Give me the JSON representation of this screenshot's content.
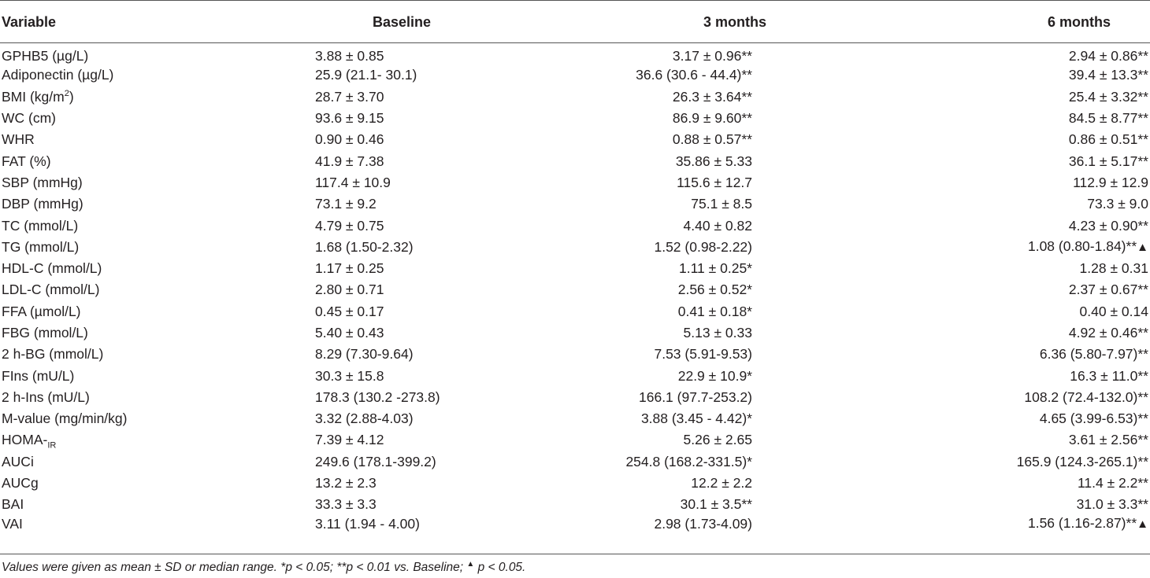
{
  "table": {
    "headers": {
      "variable": "Variable",
      "baseline": "Baseline",
      "three_months": "3 months",
      "six_months": "6 months"
    },
    "rows": [
      {
        "variable": "GPHB5 (µg/L)",
        "baseline": "3.88 ± 0.85",
        "three_months": "3.17 ± 0.96**",
        "six_months": "2.94 ± 0.86**"
      },
      {
        "variable": "Adiponectin (µg/L)",
        "baseline": "25.9 (21.1- 30.1)",
        "three_months": "36.6 (30.6 - 44.4)**",
        "six_months": "39.4 ± 13.3**"
      },
      {
        "variable": "BMI (kg/m",
        "variable_sup": "2",
        "variable_suffix": ")",
        "baseline": "28.7 ± 3.70",
        "three_months": "26.3 ± 3.64**",
        "six_months": "25.4 ± 3.32**"
      },
      {
        "variable": "WC (cm)",
        "baseline": "93.6 ± 9.15",
        "three_months": "86.9 ± 9.60**",
        "six_months": "84.5 ± 8.77**"
      },
      {
        "variable": "WHR",
        "baseline": "0.90 ± 0.46",
        "three_months": "0.88 ± 0.57**",
        "six_months": "0.86 ± 0.51**"
      },
      {
        "variable": "FAT (%)",
        "baseline": "41.9 ± 7.38",
        "three_months": "35.86 ± 5.33",
        "six_months": "36.1 ± 5.17**"
      },
      {
        "variable": "SBP (mmHg)",
        "baseline": "117.4 ± 10.9",
        "three_months": "115.6 ± 12.7",
        "six_months": "112.9 ± 12.9"
      },
      {
        "variable": "DBP (mmHg)",
        "baseline": "73.1 ± 9.2",
        "three_months": "75.1 ± 8.5",
        "six_months": "73.3 ± 9.0"
      },
      {
        "variable": "TC (mmol/L)",
        "baseline": "4.79 ± 0.75",
        "three_months": "4.40 ± 0.82",
        "six_months": "4.23 ± 0.90**"
      },
      {
        "variable": "TG (mmol/L)",
        "baseline": "1.68 (1.50-2.32)",
        "three_months": "1.52 (0.98-2.22)",
        "six_months": "1.08 (0.80-1.84)**",
        "six_months_marker": "▲"
      },
      {
        "variable": "HDL-C (mmol/L)",
        "baseline": "1.17 ± 0.25",
        "three_months": "1.11 ± 0.25*",
        "six_months": "1.28 ± 0.31"
      },
      {
        "variable": "LDL-C (mmol/L)",
        "baseline": "2.80 ± 0.71",
        "three_months": "2.56 ± 0.52*",
        "six_months": "2.37 ± 0.67**"
      },
      {
        "variable": "FFA (µmol/L)",
        "baseline": "0.45 ± 0.17",
        "three_months": "0.41 ± 0.18*",
        "six_months": "0.40 ± 0.14"
      },
      {
        "variable": "FBG (mmol/L)",
        "baseline": "5.40 ± 0.43",
        "three_months": "5.13 ± 0.33",
        "six_months": "4.92 ± 0.46**"
      },
      {
        "variable": "2 h-BG (mmol/L)",
        "baseline": "8.29 (7.30-9.64)",
        "three_months": "7.53 (5.91-9.53)",
        "six_months": "6.36 (5.80-7.97)**"
      },
      {
        "variable": "FIns (mU/L)",
        "baseline": "30.3 ± 15.8",
        "three_months": "22.9 ± 10.9*",
        "six_months": "16.3 ± 11.0**"
      },
      {
        "variable": "2 h-Ins (mU/L)",
        "baseline": "178.3 (130.2 -273.8)",
        "three_months": "166.1 (97.7-253.2)",
        "six_months": "108.2 (72.4-132.0)**"
      },
      {
        "variable": "M-value (mg/min/kg)",
        "baseline": "3.32 (2.88-4.03)",
        "three_months": "3.88 (3.45 - 4.42)*",
        "six_months": "4.65 (3.99-6.53)**"
      },
      {
        "variable": "HOMA-",
        "variable_sub": "IR",
        "baseline": "7.39 ± 4.12",
        "three_months": "5.26 ± 2.65",
        "six_months": "3.61 ± 2.56**"
      },
      {
        "variable": "AUCi",
        "baseline": "249.6 (178.1-399.2)",
        "three_months": "254.8 (168.2-331.5)*",
        "six_months": "165.9 (124.3-265.1)**"
      },
      {
        "variable": "AUCg",
        "baseline": "13.2 ± 2.3",
        "three_months": "12.2 ± 2.2",
        "six_months": "11.4 ± 2.2**"
      },
      {
        "variable": "BAI",
        "baseline": "33.3 ± 3.3",
        "three_months": "30.1 ± 3.5**",
        "six_months": "31.0 ± 3.3**"
      },
      {
        "variable": "VAI",
        "baseline": "3.11 (1.94 - 4.00)",
        "three_months": "2.98 (1.73-4.09)",
        "six_months": "1.56 (1.16-2.87)**",
        "six_months_marker": "▲"
      }
    ]
  },
  "footnote": {
    "text_before": "Values were given as mean ± SD or median range. *p < 0.05; **p < 0.01 vs. Baseline; ",
    "marker": "▲",
    "text_after": " p < 0.05."
  }
}
